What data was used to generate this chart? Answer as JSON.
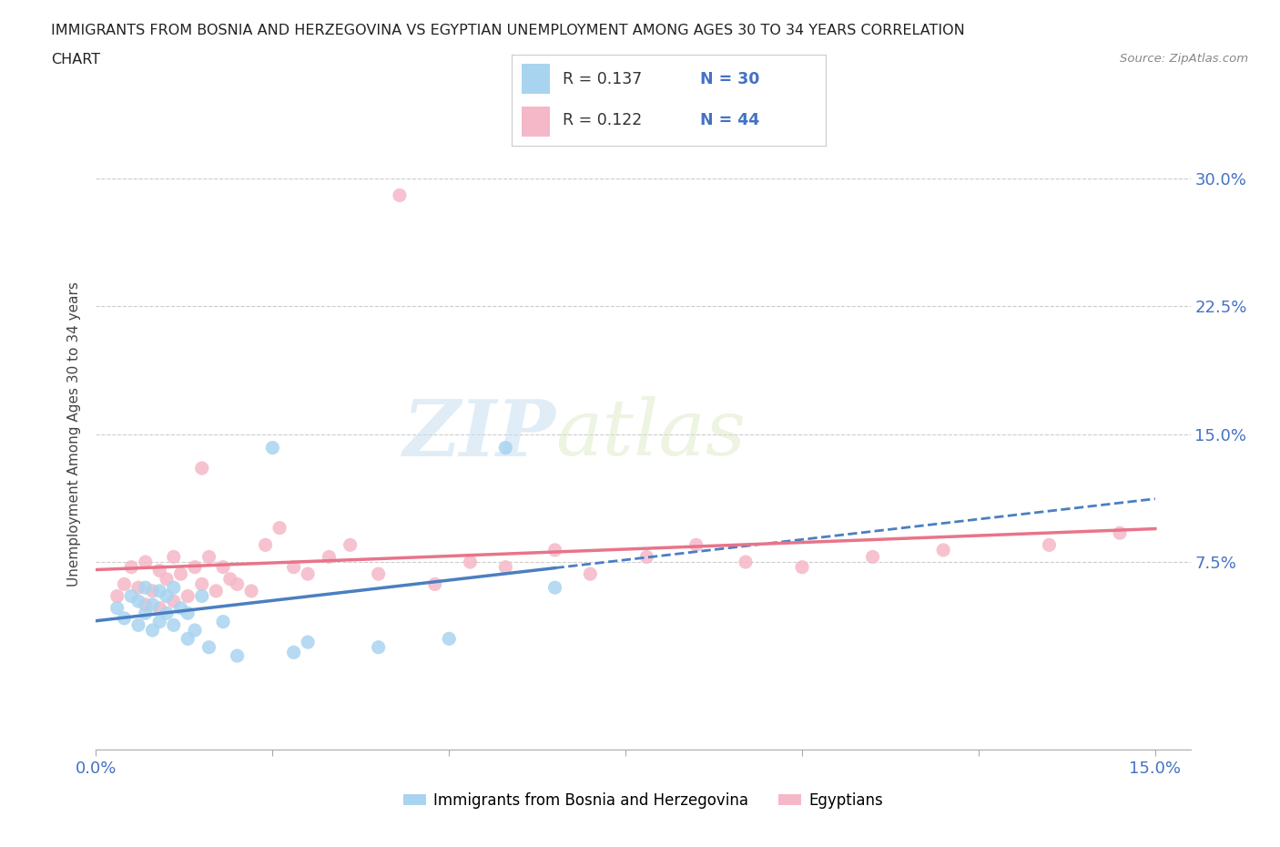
{
  "title_line1": "IMMIGRANTS FROM BOSNIA AND HERZEGOVINA VS EGYPTIAN UNEMPLOYMENT AMONG AGES 30 TO 34 YEARS CORRELATION",
  "title_line2": "CHART",
  "source_text": "Source: ZipAtlas.com",
  "ylabel": "Unemployment Among Ages 30 to 34 years",
  "xlim": [
    0.0,
    0.155
  ],
  "ylim": [
    -0.035,
    0.335
  ],
  "r_bosnia": 0.137,
  "n_bosnia": 30,
  "r_egypt": 0.122,
  "n_egypt": 44,
  "color_bosnia": "#A8D4F0",
  "color_egypt": "#F5B8C8",
  "color_line_bosnia": "#4A7FC1",
  "color_line_egypt": "#E8748A",
  "watermark_zip": "ZIP",
  "watermark_atlas": "atlas",
  "bosnia_scatter_x": [
    0.003,
    0.004,
    0.005,
    0.006,
    0.006,
    0.007,
    0.007,
    0.008,
    0.008,
    0.009,
    0.009,
    0.01,
    0.01,
    0.011,
    0.011,
    0.012,
    0.013,
    0.013,
    0.014,
    0.015,
    0.016,
    0.018,
    0.02,
    0.025,
    0.028,
    0.03,
    0.04,
    0.05,
    0.058,
    0.065
  ],
  "bosnia_scatter_y": [
    0.048,
    0.042,
    0.055,
    0.038,
    0.052,
    0.045,
    0.06,
    0.035,
    0.05,
    0.058,
    0.04,
    0.045,
    0.055,
    0.038,
    0.06,
    0.048,
    0.03,
    0.045,
    0.035,
    0.055,
    0.025,
    0.04,
    0.02,
    0.142,
    0.022,
    0.028,
    0.025,
    0.03,
    0.142,
    0.06
  ],
  "egypt_scatter_x": [
    0.003,
    0.004,
    0.005,
    0.006,
    0.007,
    0.007,
    0.008,
    0.009,
    0.009,
    0.01,
    0.011,
    0.011,
    0.012,
    0.013,
    0.014,
    0.015,
    0.015,
    0.016,
    0.017,
    0.018,
    0.019,
    0.02,
    0.022,
    0.024,
    0.026,
    0.028,
    0.03,
    0.033,
    0.036,
    0.04,
    0.043,
    0.048,
    0.053,
    0.058,
    0.065,
    0.07,
    0.078,
    0.085,
    0.092,
    0.1,
    0.11,
    0.12,
    0.135,
    0.145
  ],
  "egypt_scatter_y": [
    0.055,
    0.062,
    0.072,
    0.06,
    0.075,
    0.05,
    0.058,
    0.07,
    0.048,
    0.065,
    0.078,
    0.052,
    0.068,
    0.055,
    0.072,
    0.13,
    0.062,
    0.078,
    0.058,
    0.072,
    0.065,
    0.062,
    0.058,
    0.085,
    0.095,
    0.072,
    0.068,
    0.078,
    0.085,
    0.068,
    0.29,
    0.062,
    0.075,
    0.072,
    0.082,
    0.068,
    0.078,
    0.085,
    0.075,
    0.072,
    0.078,
    0.082,
    0.085,
    0.092
  ]
}
